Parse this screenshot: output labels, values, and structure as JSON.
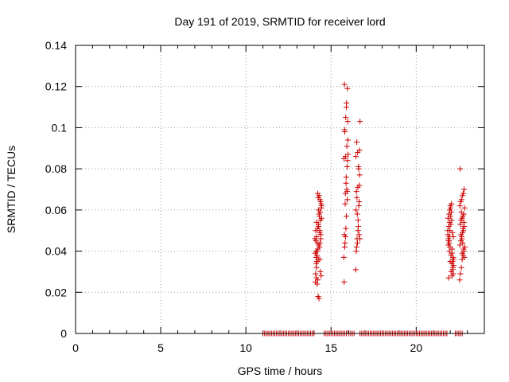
{
  "chart_data": {
    "type": "scatter",
    "title": "Day 191 of 2019, SRMTID for receiver lord",
    "xlabel": "GPS time / hours",
    "ylabel": "SRMTID / TECUs",
    "xlim": [
      0,
      24
    ],
    "ylim": [
      0,
      0.14
    ],
    "xticks": [
      0,
      5,
      10,
      15,
      20
    ],
    "xtick_labels": [
      "0",
      "5",
      "10",
      "15",
      "20"
    ],
    "yticks": [
      0,
      0.02,
      0.04,
      0.06,
      0.08,
      0.1,
      0.12,
      0.14
    ],
    "ytick_labels": [
      "0",
      "0.02",
      "0.04",
      "0.06",
      "0.08",
      "0.1",
      "0.12",
      "0.14"
    ],
    "grid": true,
    "marker": "+",
    "color": "#cc0000",
    "series": [
      {
        "name": "SRMTID",
        "x": [
          14.05,
          14.1,
          14.15,
          14.2,
          14.25,
          14.3,
          14.35,
          14.4,
          14.45,
          14.07,
          14.12,
          14.17,
          14.22,
          14.27,
          14.32,
          14.37,
          14.42,
          14.09,
          14.14,
          14.19,
          14.24,
          14.29,
          14.34,
          14.39,
          14.44,
          14.11,
          14.16,
          14.21,
          14.26,
          14.31,
          14.36,
          14.41,
          14.13,
          14.18,
          14.23,
          14.28,
          14.33,
          14.38,
          14.43,
          14.08,
          14.15,
          14.22,
          14.3,
          14.35,
          14.27,
          14.2,
          14.34,
          14.12,
          14.4,
          14.25,
          15.75,
          15.8,
          15.85,
          15.9,
          15.95,
          16.0,
          15.78,
          15.83,
          15.88,
          15.93,
          15.98,
          15.76,
          15.81,
          15.86,
          15.91,
          15.96,
          15.79,
          15.84,
          15.89,
          15.94,
          15.99,
          15.77,
          15.82,
          15.87,
          15.92,
          15.97,
          15.8,
          15.85,
          15.9,
          15.95,
          16.45,
          16.5,
          16.55,
          16.6,
          16.65,
          16.7,
          16.48,
          16.53,
          16.58,
          16.63,
          16.68,
          16.46,
          16.51,
          16.56,
          16.61,
          16.66,
          16.49,
          16.54,
          16.59,
          16.64,
          16.69,
          16.47,
          16.52,
          16.57,
          16.62,
          16.67,
          21.85,
          21.9,
          21.95,
          22.0,
          22.05,
          22.1,
          22.15,
          22.2,
          21.87,
          21.92,
          21.97,
          22.02,
          22.07,
          22.12,
          22.17,
          21.89,
          21.94,
          21.99,
          22.04,
          22.09,
          22.14,
          22.19,
          21.86,
          21.91,
          21.96,
          22.01,
          22.06,
          22.11,
          22.16,
          21.88,
          21.93,
          21.98,
          22.03,
          22.08,
          22.13,
          22.18,
          21.9,
          22.0,
          22.1,
          21.95,
          22.55,
          22.6,
          22.65,
          22.7,
          22.75,
          22.8,
          22.85,
          22.57,
          22.62,
          22.67,
          22.72,
          22.77,
          22.82,
          22.59,
          22.64,
          22.69,
          22.74,
          22.79,
          22.84,
          22.56,
          22.61,
          22.66,
          22.71,
          22.76,
          22.81,
          22.58,
          22.63,
          22.68,
          22.73,
          22.78,
          22.83,
          22.7,
          22.75,
          22.8,
          22.65
        ],
        "y": [
          0.046,
          0.05,
          0.054,
          0.04,
          0.066,
          0.058,
          0.044,
          0.048,
          0.062,
          0.039,
          0.037,
          0.035,
          0.068,
          0.052,
          0.042,
          0.03,
          0.028,
          0.029,
          0.027,
          0.024,
          0.018,
          0.017,
          0.036,
          0.064,
          0.056,
          0.045,
          0.047,
          0.051,
          0.053,
          0.057,
          0.059,
          0.063,
          0.034,
          0.038,
          0.041,
          0.043,
          0.049,
          0.055,
          0.061,
          0.025,
          0.032,
          0.026,
          0.067,
          0.065,
          0.06,
          0.044,
          0.05,
          0.04,
          0.046,
          0.036,
          0.037,
          0.042,
          0.047,
          0.057,
          0.069,
          0.087,
          0.048,
          0.063,
          0.073,
          0.091,
          0.103,
          0.085,
          0.098,
          0.105,
          0.112,
          0.119,
          0.121,
          0.068,
          0.076,
          0.081,
          0.094,
          0.025,
          0.044,
          0.051,
          0.07,
          0.084,
          0.099,
          0.086,
          0.11,
          0.065,
          0.031,
          0.042,
          0.044,
          0.052,
          0.064,
          0.103,
          0.04,
          0.046,
          0.05,
          0.062,
          0.077,
          0.086,
          0.093,
          0.088,
          0.081,
          0.072,
          0.069,
          0.058,
          0.055,
          0.048,
          0.046,
          0.06,
          0.066,
          0.071,
          0.08,
          0.089,
          0.05,
          0.045,
          0.04,
          0.035,
          0.03,
          0.028,
          0.032,
          0.036,
          0.056,
          0.058,
          0.06,
          0.061,
          0.063,
          0.049,
          0.047,
          0.046,
          0.044,
          0.042,
          0.038,
          0.034,
          0.031,
          0.033,
          0.048,
          0.052,
          0.054,
          0.057,
          0.059,
          0.041,
          0.037,
          0.043,
          0.045,
          0.05,
          0.053,
          0.055,
          0.035,
          0.029,
          0.027,
          0.062,
          0.039,
          0.047,
          0.026,
          0.029,
          0.032,
          0.036,
          0.038,
          0.04,
          0.042,
          0.043,
          0.045,
          0.047,
          0.049,
          0.05,
          0.052,
          0.053,
          0.055,
          0.056,
          0.057,
          0.058,
          0.061,
          0.062,
          0.064,
          0.065,
          0.067,
          0.068,
          0.07,
          0.08,
          0.048,
          0.046,
          0.044,
          0.041,
          0.037,
          0.039,
          0.051,
          0.054,
          0.059
        ]
      }
    ],
    "zero_segments": [
      [
        11.0,
        14.05
      ],
      [
        14.6,
        15.95
      ],
      [
        16.05,
        16.35
      ],
      [
        16.7,
        21.85
      ],
      [
        22.3,
        22.75
      ]
    ]
  }
}
